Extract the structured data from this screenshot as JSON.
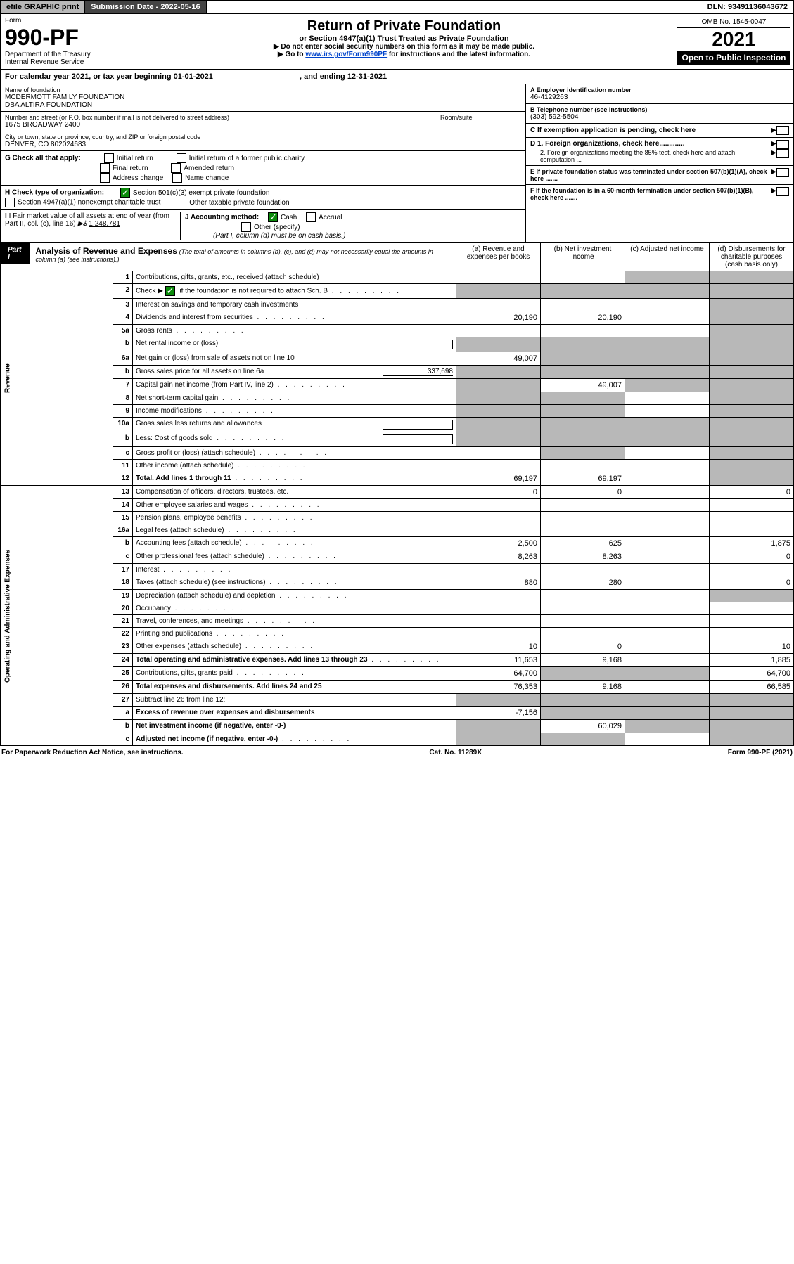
{
  "header": {
    "efile": "efile GRAPHIC print",
    "submission_label": "Submission Date - 2022-05-16",
    "dln": "DLN: 93491136043672"
  },
  "form": {
    "form_label": "Form",
    "number": "990-PF",
    "dept": "Department of the Treasury",
    "irs": "Internal Revenue Service",
    "title": "Return of Private Foundation",
    "subtitle": "or Section 4947(a)(1) Trust Treated as Private Foundation",
    "instr1": "▶ Do not enter social security numbers on this form as it may be made public.",
    "instr2_pre": "▶ Go to ",
    "instr2_link": "www.irs.gov/Form990PF",
    "instr2_post": " for instructions and the latest information.",
    "omb": "OMB No. 1545-0047",
    "year": "2021",
    "open": "Open to Public Inspection"
  },
  "cal": {
    "text": "For calendar year 2021, or tax year beginning 01-01-2021",
    "end": ", and ending 12-31-2021"
  },
  "info": {
    "name_label": "Name of foundation",
    "name1": "MCDERMOTT FAMILY FOUNDATION",
    "name2": "DBA ALTIRA FOUNDATION",
    "addr_label": "Number and street (or P.O. box number if mail is not delivered to street address)",
    "room_label": "Room/suite",
    "addr": "1675 BROADWAY 2400",
    "city_label": "City or town, state or province, country, and ZIP or foreign postal code",
    "city": "DENVER, CO  802024683",
    "ein_label": "A Employer identification number",
    "ein": "46-4129263",
    "phone_label": "B Telephone number (see instructions)",
    "phone": "(303) 592-5504",
    "c_label": "C If exemption application is pending, check here",
    "d1": "D 1. Foreign organizations, check here.............",
    "d2": "2. Foreign organizations meeting the 85% test, check here and attach computation ...",
    "e_label": "E  If private foundation status was terminated under section 507(b)(1)(A), check here .......",
    "f_label": "F  If the foundation is in a 60-month termination under section 507(b)(1)(B), check here .......",
    "g_label": "G Check all that apply:",
    "g_opts": [
      "Initial return",
      "Initial return of a former public charity",
      "Final return",
      "Amended return",
      "Address change",
      "Name change"
    ],
    "h_label": "H Check type of organization:",
    "h1": "Section 501(c)(3) exempt private foundation",
    "h2": "Section 4947(a)(1) nonexempt charitable trust",
    "h3": "Other taxable private foundation",
    "i_label": "I Fair market value of all assets at end of year (from Part II, col. (c), line 16)",
    "i_val": "1,248,781",
    "j_label": "J Accounting method:",
    "j_cash": "Cash",
    "j_accrual": "Accrual",
    "j_other": "Other (specify)",
    "j_note": "(Part I, column (d) must be on cash basis.)"
  },
  "part1": {
    "tag": "Part I",
    "title": "Analysis of Revenue and Expenses",
    "note": "(The total of amounts in columns (b), (c), and (d) may not necessarily equal the amounts in column (a) (see instructions).)",
    "cols": {
      "a": "(a)   Revenue and expenses per books",
      "b": "(b)   Net investment income",
      "c": "(c)   Adjusted net income",
      "d": "(d)   Disbursements for charitable purposes (cash basis only)"
    }
  },
  "side": {
    "rev": "Revenue",
    "exp": "Operating and Administrative Expenses"
  },
  "rows": [
    {
      "n": "1",
      "d": "Contributions, gifts, grants, etc., received (attach schedule)",
      "a": "",
      "b": "",
      "cS": true,
      "dS": true
    },
    {
      "n": "2",
      "d": "Check ▶ [chk] if the foundation is not required to attach Sch. B",
      "dots": true,
      "noVals": true
    },
    {
      "n": "3",
      "d": "Interest on savings and temporary cash investments",
      "a": "",
      "b": "",
      "c": "",
      "dS": true
    },
    {
      "n": "4",
      "d": "Dividends and interest from securities",
      "dots": true,
      "a": "20,190",
      "b": "20,190",
      "c": "",
      "dS": true
    },
    {
      "n": "5a",
      "d": "Gross rents",
      "dots": true,
      "a": "",
      "b": "",
      "c": "",
      "dS": true
    },
    {
      "n": "b",
      "d": "Net rental income or (loss)",
      "blank": true,
      "allS": true
    },
    {
      "n": "6a",
      "d": "Net gain or (loss) from sale of assets not on line 10",
      "a": "49,007",
      "bS": true,
      "cS": true,
      "dS": true
    },
    {
      "n": "b",
      "d": "Gross sales price for all assets on line 6a",
      "inline": "337,698",
      "allS": true
    },
    {
      "n": "7",
      "d": "Capital gain net income (from Part IV, line 2)",
      "dots": true,
      "aS": true,
      "b": "49,007",
      "cS": true,
      "dS": true
    },
    {
      "n": "8",
      "d": "Net short-term capital gain",
      "dots": true,
      "aS": true,
      "bS": true,
      "c": "",
      "dS": true
    },
    {
      "n": "9",
      "d": "Income modifications",
      "dots": true,
      "aS": true,
      "bS": true,
      "c": "",
      "dS": true
    },
    {
      "n": "10a",
      "d": "Gross sales less returns and allowances",
      "blank": true,
      "allS": true
    },
    {
      "n": "b",
      "d": "Less: Cost of goods sold",
      "dots": true,
      "blank": true,
      "allS": true
    },
    {
      "n": "c",
      "d": "Gross profit or (loss) (attach schedule)",
      "dots": true,
      "a": "",
      "bS": true,
      "c": "",
      "dS": true
    },
    {
      "n": "11",
      "d": "Other income (attach schedule)",
      "dots": true,
      "a": "",
      "b": "",
      "c": "",
      "dS": true
    },
    {
      "n": "12",
      "d": "Total. Add lines 1 through 11",
      "dots": true,
      "bold": true,
      "a": "69,197",
      "b": "69,197",
      "c": "",
      "dS": true
    }
  ],
  "exp_rows": [
    {
      "n": "13",
      "d": "Compensation of officers, directors, trustees, etc.",
      "a": "0",
      "b": "0",
      "c": "",
      "dVal": "0"
    },
    {
      "n": "14",
      "d": "Other employee salaries and wages",
      "dots": true,
      "a": "",
      "b": "",
      "c": "",
      "dVal": ""
    },
    {
      "n": "15",
      "d": "Pension plans, employee benefits",
      "dots": true,
      "a": "",
      "b": "",
      "c": "",
      "dVal": ""
    },
    {
      "n": "16a",
      "d": "Legal fees (attach schedule)",
      "dots": true,
      "a": "",
      "b": "",
      "c": "",
      "dVal": ""
    },
    {
      "n": "b",
      "d": "Accounting fees (attach schedule)",
      "dots": true,
      "a": "2,500",
      "b": "625",
      "c": "",
      "dVal": "1,875"
    },
    {
      "n": "c",
      "d": "Other professional fees (attach schedule)",
      "dots": true,
      "a": "8,263",
      "b": "8,263",
      "c": "",
      "dVal": "0"
    },
    {
      "n": "17",
      "d": "Interest",
      "dots": true,
      "a": "",
      "b": "",
      "c": "",
      "dVal": ""
    },
    {
      "n": "18",
      "d": "Taxes (attach schedule) (see instructions)",
      "dots": true,
      "a": "880",
      "b": "280",
      "c": "",
      "dVal": "0"
    },
    {
      "n": "19",
      "d": "Depreciation (attach schedule) and depletion",
      "dots": true,
      "a": "",
      "b": "",
      "c": "",
      "dS": true
    },
    {
      "n": "20",
      "d": "Occupancy",
      "dots": true,
      "a": "",
      "b": "",
      "c": "",
      "dVal": ""
    },
    {
      "n": "21",
      "d": "Travel, conferences, and meetings",
      "dots": true,
      "a": "",
      "b": "",
      "c": "",
      "dVal": ""
    },
    {
      "n": "22",
      "d": "Printing and publications",
      "dots": true,
      "a": "",
      "b": "",
      "c": "",
      "dVal": ""
    },
    {
      "n": "23",
      "d": "Other expenses (attach schedule)",
      "dots": true,
      "a": "10",
      "b": "0",
      "c": "",
      "dVal": "10"
    },
    {
      "n": "24",
      "d": "Total operating and administrative expenses. Add lines 13 through 23",
      "dots": true,
      "bold": true,
      "a": "11,653",
      "b": "9,168",
      "c": "",
      "dVal": "1,885"
    },
    {
      "n": "25",
      "d": "Contributions, gifts, grants paid",
      "dots": true,
      "a": "64,700",
      "bS": true,
      "cS": true,
      "dVal": "64,700"
    },
    {
      "n": "26",
      "d": "Total expenses and disbursements. Add lines 24 and 25",
      "bold": true,
      "a": "76,353",
      "b": "9,168",
      "c": "",
      "dVal": "66,585"
    },
    {
      "n": "27",
      "d": "Subtract line 26 from line 12:",
      "aS": true,
      "bS": true,
      "cS": true,
      "dS": true
    },
    {
      "n": "a",
      "d": "Excess of revenue over expenses and disbursements",
      "bold": true,
      "a": "-7,156",
      "bS": true,
      "cS": true,
      "dS": true
    },
    {
      "n": "b",
      "d": "Net investment income (if negative, enter -0-)",
      "bold": true,
      "aS": true,
      "b": "60,029",
      "cS": true,
      "dS": true
    },
    {
      "n": "c",
      "d": "Adjusted net income (if negative, enter -0-)",
      "dots": true,
      "bold": true,
      "aS": true,
      "bS": true,
      "c": "",
      "dS": true
    }
  ],
  "footer": {
    "left": "For Paperwork Reduction Act Notice, see instructions.",
    "mid": "Cat. No. 11289X",
    "right": "Form 990-PF (2021)"
  }
}
